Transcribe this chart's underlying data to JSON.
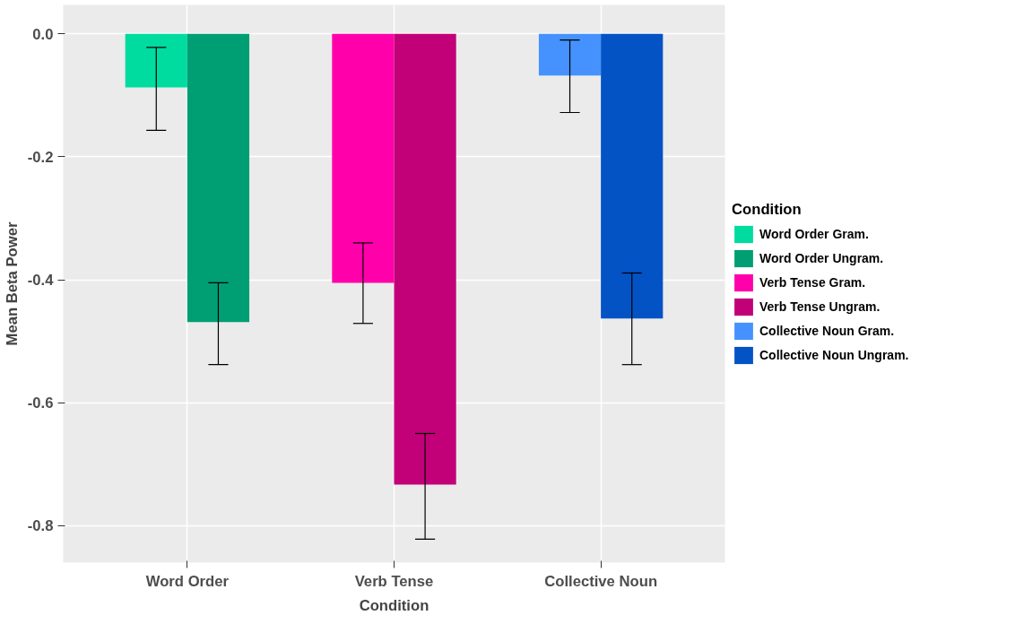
{
  "chart_data": {
    "type": "bar",
    "xlabel": "Condition",
    "ylabel": "Mean Beta Power",
    "legend_title": "Condition",
    "categories": [
      "Word Order",
      "Verb Tense",
      "Collective Noun"
    ],
    "series": [
      {
        "name": "Word Order Gram.",
        "color": "#00dca0",
        "values": [
          -0.087,
          null,
          null
        ],
        "errors": [
          [
            -0.157,
            -0.022
          ],
          null,
          null
        ]
      },
      {
        "name": "Word Order Ungram.",
        "color": "#009e73",
        "values": [
          -0.469,
          null,
          null
        ],
        "errors": [
          [
            -0.538,
            -0.405
          ],
          null,
          null
        ]
      },
      {
        "name": "Verb Tense Gram.",
        "color": "#ff00aa",
        "values": [
          null,
          -0.405,
          null
        ],
        "errors": [
          null,
          [
            -0.471,
            -0.34
          ],
          null
        ]
      },
      {
        "name": "Verb Tense Ungram.",
        "color": "#c20078",
        "values": [
          null,
          -0.733,
          null
        ],
        "errors": [
          null,
          [
            -0.822,
            -0.65
          ],
          null
        ]
      },
      {
        "name": "Collective Noun Gram.",
        "color": "#4592ff",
        "values": [
          null,
          null,
          -0.068
        ],
        "errors": [
          null,
          null,
          [
            -0.128,
            -0.01
          ]
        ]
      },
      {
        "name": "Collective Noun Ungram.",
        "color": "#0353c5",
        "values": [
          null,
          null,
          -0.463
        ],
        "errors": [
          null,
          null,
          [
            -0.538,
            -0.389
          ]
        ]
      }
    ],
    "ylim": [
      -0.86,
      0.047
    ],
    "yticks": [
      {
        "value": 0,
        "label": "0.0"
      },
      -0.2,
      -0.4,
      -0.6,
      -0.8
    ],
    "grid": true,
    "legend": "right"
  }
}
